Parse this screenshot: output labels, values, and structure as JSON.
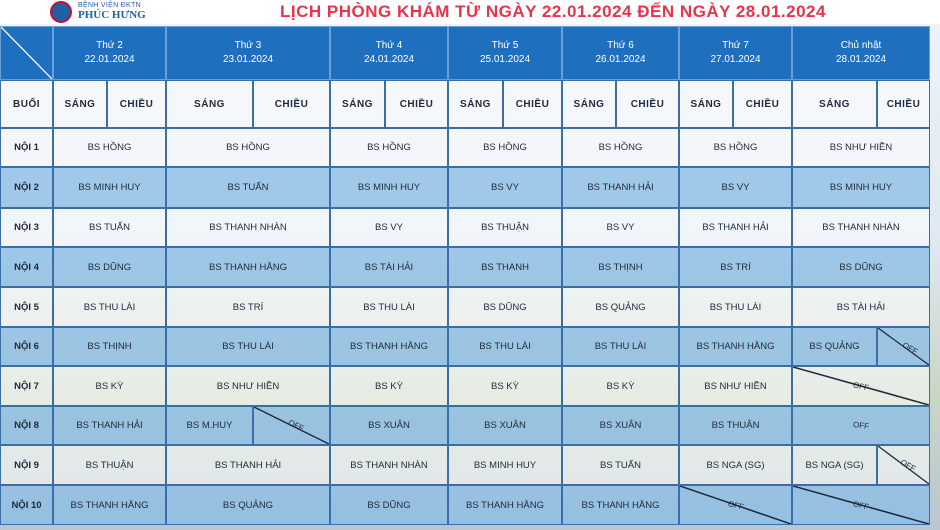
{
  "header": {
    "logo_line1": "BỆNH VIỆN ĐKTN",
    "logo_line2": "PHÚC HƯNG",
    "title": "LỊCH PHÒNG KHÁM TỪ NGÀY 22.01.2024 ĐẾN NGÀY 28.01.2024"
  },
  "days": [
    {
      "name": "Thứ 2",
      "date": "22.01.2024"
    },
    {
      "name": "Thứ 3",
      "date": "23.01.2024"
    },
    {
      "name": "Thứ 4",
      "date": "24.01.2024"
    },
    {
      "name": "Thứ 5",
      "date": "25.01.2024"
    },
    {
      "name": "Thứ 6",
      "date": "26.01.2024"
    },
    {
      "name": "Thứ 7",
      "date": "27.01.2024"
    },
    {
      "name": "Chủ nhật",
      "date": "28.01.2024"
    }
  ],
  "session_header": "BUỔI",
  "morning": "SÁNG",
  "afternoon": "CHIỀU",
  "off_label": "OFF",
  "rows": [
    {
      "label": "NỘI 1",
      "cells": [
        "BS HỒNG",
        "BS HỒNG",
        "BS HỒNG",
        "BS HỒNG",
        "BS HỒNG",
        "BS HỒNG",
        "BS NHƯ HIỀN"
      ]
    },
    {
      "label": "NỘI 2",
      "cells": [
        "BS MINH HUY",
        "BS TUẤN",
        "BS MINH HUY",
        "BS VY",
        "BS THANH HẢI",
        "BS VY",
        "BS MINH HUY"
      ]
    },
    {
      "label": "NỘI 3",
      "cells": [
        "BS TUẤN",
        "BS THANH NHÀN",
        "BS VY",
        "BS THUẬN",
        "BS VY",
        "BS THANH HẢI",
        "BS THANH NHÀN"
      ]
    },
    {
      "label": "NỘI 4",
      "cells": [
        "BS DŨNG",
        "BS THANH HẰNG",
        "BS TÀI HẢI",
        "BS THANH",
        "BS THỊNH",
        "BS TRÍ",
        "BS DŨNG"
      ]
    },
    {
      "label": "NỘI 5",
      "cells": [
        "BS THU LÀI",
        "BS TRÍ",
        "BS THU LÀI",
        "BS DŨNG",
        "BS QUẢNG",
        "BS THU LÀI",
        "BS TÀI HẢI"
      ]
    },
    {
      "label": "NỘI 6",
      "cells": [
        "BS THỊNH",
        "BS THU LÀI",
        "BS THANH HẰNG",
        "BS THU LÀI",
        "BS THU LÀI",
        "BS THANH HẰNG",
        "BS QUẢNG"
      ]
    },
    {
      "label": "NỘI 7",
      "cells": [
        "BS KỲ",
        "BS NHƯ HIỀN",
        "BS KỲ",
        "BS KỲ",
        "BS KỲ",
        "BS NHƯ HIỀN"
      ]
    },
    {
      "label": "NỘI 8",
      "cells": [
        "BS THANH HẢI",
        "BS M.HUY",
        "BS XUÂN",
        "BS XUÂN",
        "BS XUÂN",
        "BS THUẬN"
      ]
    },
    {
      "label": "NỘI 9",
      "cells": [
        "BS THUẬN",
        "BS THANH HẢI",
        "BS THANH NHÀN",
        "BS MINH HUY",
        "BS TUẤN",
        "BS NGA (SG)",
        "BS NGA (SG)"
      ]
    },
    {
      "label": "NỘI 10",
      "cells": [
        "BS THANH HẰNG",
        "BS QUẢNG",
        "BS DŨNG",
        "BS THANH HẰNG",
        "BS THANH HẰNG"
      ]
    }
  ]
}
